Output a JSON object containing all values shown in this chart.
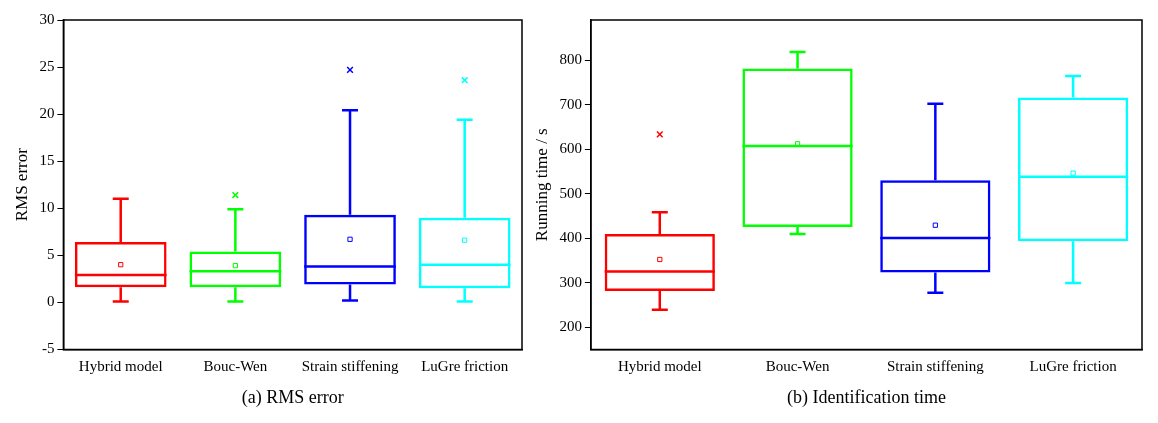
{
  "chart_data": [
    {
      "type": "box",
      "xlabel": "(a) RMS error",
      "ylabel": "RMS error",
      "categories": [
        "Hybrid model",
        "Bouc-Wen",
        "Strain stiffening",
        "LuGre friction"
      ],
      "colors": [
        "#ff0000",
        "#00ff00",
        "#0000ff",
        "#00ffff"
      ],
      "ylim": [
        -5,
        30
      ],
      "yticks": [
        -5,
        0,
        5,
        10,
        15,
        20,
        25,
        30
      ],
      "grid": false,
      "legend": false,
      "boxes": [
        {
          "low": 0.1,
          "q1": 1.6,
          "median": 2.9,
          "q3": 6.4,
          "high": 11,
          "mean": 4
        },
        {
          "low": 0.1,
          "q1": 1.6,
          "median": 3.3,
          "q3": 5.4,
          "high": 9.9,
          "mean": 3.9,
          "outliers": [
            11.4
          ]
        },
        {
          "low": 0.2,
          "q1": 1.9,
          "median": 3.8,
          "q3": 9.3,
          "high": 20.4,
          "mean": 6.7,
          "outliers": [
            24.7
          ]
        },
        {
          "low": 0.1,
          "q1": 1.5,
          "median": 4.0,
          "q3": 9.0,
          "high": 19.4,
          "mean": 6.6,
          "outliers": [
            23.6
          ]
        }
      ]
    },
    {
      "type": "box",
      "xlabel": "(b) Identification time",
      "ylabel": "Running time / s",
      "categories": [
        "Hybrid model",
        "Bouc-Wen",
        "Strain stiffening",
        "LuGre friction"
      ],
      "colors": [
        "#ff0000",
        "#00ff00",
        "#0000ff",
        "#00ffff"
      ],
      "ylim": [
        150,
        890
      ],
      "yticks": [
        200,
        300,
        400,
        500,
        600,
        700,
        800
      ],
      "grid": false,
      "legend": false,
      "boxes": [
        {
          "low": 239,
          "q1": 281,
          "median": 325,
          "q3": 409,
          "high": 458,
          "mean": 352,
          "outliers": [
            633
          ]
        },
        {
          "low": 409,
          "q1": 425,
          "median": 607,
          "q3": 781,
          "high": 818,
          "mean": 612
        },
        {
          "low": 277,
          "q1": 323,
          "median": 400,
          "q3": 530,
          "high": 702,
          "mean": 429
        },
        {
          "low": 299,
          "q1": 393,
          "median": 538,
          "q3": 716,
          "high": 764,
          "mean": 546
        }
      ]
    }
  ]
}
